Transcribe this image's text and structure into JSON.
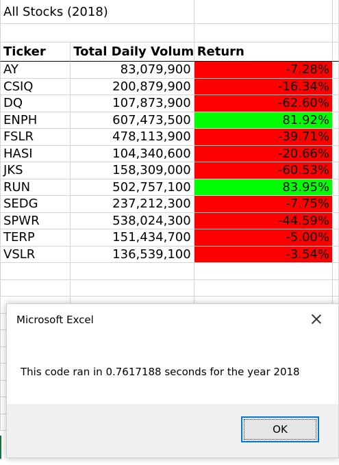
{
  "sheet": {
    "title": "All Stocks (2018)",
    "headers": {
      "ticker": "Ticker",
      "volume": "Total Daily Volume",
      "return": "Return"
    },
    "rows": [
      {
        "ticker": "AY",
        "volume": "83,079,900",
        "return": "-7.28%",
        "status": "negative"
      },
      {
        "ticker": "CSIQ",
        "volume": "200,879,900",
        "return": "-16.34%",
        "status": "negative"
      },
      {
        "ticker": "DQ",
        "volume": "107,873,900",
        "return": "-62.60%",
        "status": "negative"
      },
      {
        "ticker": "ENPH",
        "volume": "607,473,500",
        "return": "81.92%",
        "status": "positive"
      },
      {
        "ticker": "FSLR",
        "volume": "478,113,900",
        "return": "-39.71%",
        "status": "negative"
      },
      {
        "ticker": "HASI",
        "volume": "104,340,600",
        "return": "-20.66%",
        "status": "negative"
      },
      {
        "ticker": "JKS",
        "volume": "158,309,000",
        "return": "-60.53%",
        "status": "negative"
      },
      {
        "ticker": "RUN",
        "volume": "502,757,100",
        "return": "83.95%",
        "status": "positive"
      },
      {
        "ticker": "SEDG",
        "volume": "237,212,300",
        "return": "-7.75%",
        "status": "negative"
      },
      {
        "ticker": "SPWR",
        "volume": "538,024,300",
        "return": "-44.59%",
        "status": "negative"
      },
      {
        "ticker": "TERP",
        "volume": "151,434,700",
        "return": "-5.00%",
        "status": "negative"
      },
      {
        "ticker": "VSLR",
        "volume": "136,539,100",
        "return": "-3.54%",
        "status": "negative"
      }
    ],
    "colors": {
      "negative": "#ff0000",
      "positive": "#00ff00"
    }
  },
  "dialog": {
    "title": "Microsoft Excel",
    "message": "This code ran in 0.7617188 seconds for the year 2018",
    "ok_label": "OK",
    "close_icon": "close-icon"
  }
}
